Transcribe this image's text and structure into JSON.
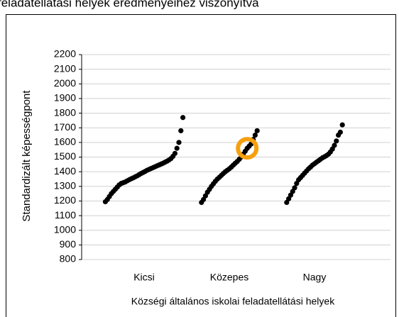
{
  "chart_data": {
    "type": "strip",
    "title": "feladatellátási helyek eredményeihez viszonyítva",
    "y_label": "Standardizált képességpont",
    "x_label": "Községi általános iskolai feladatellátási helyek",
    "categories": [
      "Kicsi",
      "Közepes",
      "Nagy"
    ],
    "color": "#000000",
    "series": [
      {
        "values": [
          1195,
          1210,
          1230,
          1250,
          1265,
          1280,
          1295,
          1310,
          1320,
          1325,
          1330,
          1338,
          1345,
          1352,
          1358,
          1365,
          1372,
          1380,
          1388,
          1395,
          1402,
          1410,
          1416,
          1422,
          1428,
          1434,
          1440,
          1446,
          1452,
          1458,
          1465,
          1472,
          1480,
          1490,
          1505,
          1525,
          1560,
          1600,
          1680,
          1770
        ]
      },
      {
        "values": [
          1190,
          1210,
          1235,
          1260,
          1280,
          1300,
          1318,
          1335,
          1350,
          1362,
          1375,
          1388,
          1400,
          1410,
          1420,
          1432,
          1445,
          1458,
          1470,
          1485,
          1500,
          1520,
          1540,
          1560,
          1575,
          1590,
          1620,
          1650,
          1680
        ]
      },
      {
        "values": [
          1190,
          1215,
          1240,
          1265,
          1290,
          1320,
          1345,
          1360,
          1375,
          1390,
          1405,
          1420,
          1432,
          1445,
          1455,
          1465,
          1475,
          1485,
          1495,
          1502,
          1510,
          1520,
          1535,
          1555,
          1580,
          1610,
          1650,
          1670,
          1720
        ]
      }
    ],
    "highlight": {
      "series": 1,
      "index": 23,
      "color": "#f5a00f"
    },
    "ylim": [
      800,
      2200
    ],
    "yticks": [
      800,
      900,
      1000,
      1100,
      1200,
      1300,
      1400,
      1500,
      1600,
      1700,
      1800,
      1900,
      2000,
      2100,
      2200
    ],
    "grid": true
  }
}
